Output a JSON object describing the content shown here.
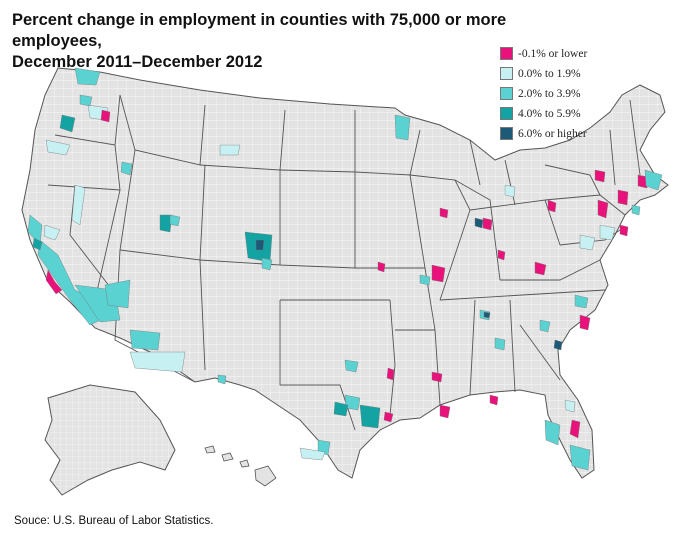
{
  "title": {
    "line1": "Percent change in employment in counties with 75,000 or more employees,",
    "line2": "December 2011–December 2012"
  },
  "legend": [
    {
      "label": "-0.1% or lower",
      "color": "#e8127a"
    },
    {
      "label": "0.0% to 1.9%",
      "color": "#c6f0f2"
    },
    {
      "label": "2.0% to 3.9%",
      "color": "#5ad2d2"
    },
    {
      "label": "4.0% to 5.9%",
      "color": "#13a3a3"
    },
    {
      "label": "6.0% or higher",
      "color": "#1d5a78"
    }
  ],
  "source": "Souce: U.S. Bureau of Labor Statistics.",
  "colors": {
    "base": "#e3e3e3",
    "county_line": "#ffffff",
    "state_line": "#555555"
  }
}
